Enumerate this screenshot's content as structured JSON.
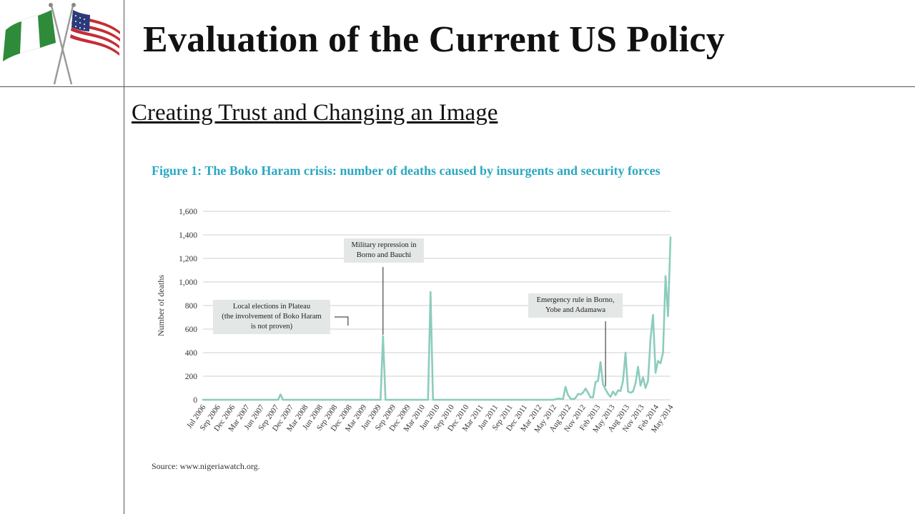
{
  "slide": {
    "title": "Evaluation of  the Current US Policy",
    "subtitle": "Creating Trust and Changing an Image"
  },
  "figure": {
    "source": "Source: www.nigeriawatch.org."
  },
  "colors": {
    "line": "#8cccbd",
    "chart_title": "#2aa8c2",
    "annotation_bg": "#e3e7e6",
    "grid": "#cfcfcf"
  },
  "chart_data": {
    "type": "line",
    "title": "Figure 1: The Boko Haram crisis: number of deaths caused by insurgents and security forces",
    "xlabel": "",
    "ylabel": "Number of deaths",
    "ylim": [
      0,
      1600
    ],
    "yticks": [
      0,
      200,
      400,
      600,
      800,
      1000,
      1200,
      1400,
      1600
    ],
    "ytick_labels": [
      "0",
      "200",
      "400",
      "600",
      "800",
      "1,000",
      "1,200",
      "1,400",
      "1,600"
    ],
    "xtick_labels": [
      "Jul 2006",
      "Sep 2006",
      "Dec 2006",
      "Mar 2007",
      "Jun 2007",
      "Sep 2007",
      "Dec 2007",
      "Mar 2008",
      "Jun 2008",
      "Sep 2008",
      "Dec 2008",
      "Mar 2009",
      "Jun 2009",
      "Sep 2009",
      "Dec 2009",
      "Mar 2010",
      "Jun 2010",
      "Sep 2010",
      "Dec 2010",
      "Mar 2011",
      "Jun 2011",
      "Sep 2011",
      "Dec 2011",
      "Mar 2012",
      "May 2012",
      "Aug 2012",
      "Nov 2012",
      "Feb 2013",
      "May 2013",
      "Aug 2013",
      "Nov 2013",
      "Feb 2014",
      "May 2014"
    ],
    "grid": "horizontal",
    "series": [
      {
        "values": [
          0,
          0,
          0,
          0,
          0,
          0,
          0,
          0,
          0,
          0,
          0,
          0,
          0,
          0,
          0,
          0,
          0,
          0,
          0,
          0,
          0,
          0,
          0,
          0,
          0,
          0,
          0,
          0,
          0,
          0,
          0,
          45,
          0,
          0,
          0,
          0,
          0,
          0,
          0,
          0,
          0,
          0,
          0,
          0,
          0,
          0,
          0,
          0,
          0,
          0,
          0,
          0,
          0,
          0,
          0,
          0,
          0,
          0,
          0,
          0,
          0,
          0,
          0,
          0,
          0,
          0,
          0,
          0,
          0,
          0,
          0,
          0,
          540,
          0,
          0,
          0,
          0,
          0,
          0,
          0,
          0,
          0,
          0,
          0,
          0,
          0,
          0,
          0,
          0,
          0,
          0,
          915,
          0,
          0,
          0,
          0,
          0,
          0,
          0,
          0,
          0,
          0,
          0,
          0,
          0,
          0,
          0,
          0,
          0,
          0,
          0,
          0,
          0,
          0,
          0,
          0,
          0,
          0,
          0,
          0,
          0,
          0,
          0,
          0,
          0,
          0,
          0,
          0,
          0,
          0,
          0,
          0,
          0,
          0,
          0,
          0,
          0,
          0,
          0,
          0,
          0,
          5,
          10,
          8,
          6,
          110,
          40,
          10,
          5,
          15,
          50,
          45,
          60,
          95,
          60,
          20,
          20,
          150,
          160,
          320,
          130,
          90,
          50,
          25,
          70,
          40,
          80,
          75,
          160,
          400,
          70,
          60,
          70,
          140,
          280,
          120,
          190,
          100,
          160,
          520,
          720,
          230,
          330,
          310,
          400,
          1050,
          710,
          1380
        ]
      }
    ],
    "annotations": [
      {
        "text_lines": [
          "Local elections in Plateau",
          "(the involvement of Boko Haram",
          "is not proven)"
        ],
        "target_label": "Dec 2008"
      },
      {
        "text_lines": [
          "Military repression in",
          "Borno and Bauchi"
        ],
        "target_label": "Sep 2009"
      },
      {
        "text_lines": [
          "Emergency rule in Borno,",
          "Yobe and Adamawa"
        ],
        "target_label": "May 2013"
      }
    ]
  }
}
